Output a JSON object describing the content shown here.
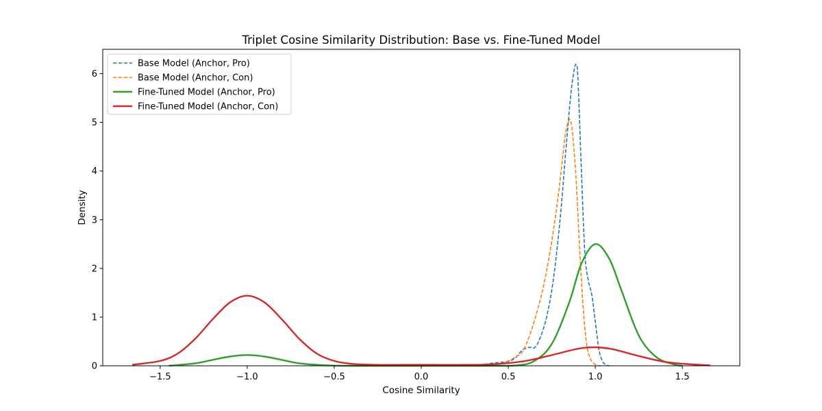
{
  "chart_data": {
    "type": "line",
    "title": "Triplet Cosine Similarity Distribution: Base vs. Fine-Tuned Model",
    "xlabel": "Cosine Similarity",
    "ylabel": "Density",
    "xlim": [
      -1.83,
      1.83
    ],
    "ylim": [
      0,
      6.5
    ],
    "xticks": [
      -1.5,
      -1.0,
      -0.5,
      0.0,
      0.5,
      1.0,
      1.5
    ],
    "xtick_labels": [
      "−1.5",
      "−1.0",
      "−0.5",
      "0.0",
      "0.5",
      "1.0",
      "1.5"
    ],
    "yticks": [
      0,
      1,
      2,
      3,
      4,
      5,
      6
    ],
    "ytick_labels": [
      "0",
      "1",
      "2",
      "3",
      "4",
      "5",
      "6"
    ],
    "grid": false,
    "legend_position": "top-left",
    "series": [
      {
        "name": "Base Model (Anchor, Pro)",
        "color": "#1f77b4",
        "dash": "dashed",
        "x": [
          0.3,
          0.35,
          0.4,
          0.45,
          0.5,
          0.54,
          0.58,
          0.62,
          0.65,
          0.68,
          0.72,
          0.76,
          0.8,
          0.83,
          0.86,
          0.88,
          0.89,
          0.9,
          0.92,
          0.94,
          0.96,
          0.98,
          1.0,
          1.02,
          1.04,
          1.06,
          1.08
        ],
        "values": [
          0.0,
          0.02,
          0.05,
          0.07,
          0.09,
          0.16,
          0.32,
          0.38,
          0.37,
          0.55,
          1.0,
          1.8,
          3.1,
          4.4,
          5.6,
          6.1,
          6.18,
          5.9,
          4.0,
          2.3,
          1.75,
          1.45,
          0.9,
          0.35,
          0.1,
          0.02,
          0.0
        ]
      },
      {
        "name": "Base Model (Anchor, Con)",
        "color": "#ff7f0e",
        "dash": "dashed",
        "x": [
          0.4,
          0.45,
          0.5,
          0.55,
          0.58,
          0.62,
          0.66,
          0.7,
          0.74,
          0.78,
          0.81,
          0.83,
          0.85,
          0.86,
          0.87,
          0.89,
          0.91,
          0.93,
          0.95,
          0.97,
          0.99,
          1.01,
          1.03
        ],
        "values": [
          0.0,
          0.04,
          0.1,
          0.2,
          0.28,
          0.6,
          1.05,
          1.6,
          2.35,
          3.3,
          4.2,
          4.8,
          5.05,
          5.0,
          4.75,
          3.8,
          2.4,
          1.2,
          0.45,
          0.15,
          0.05,
          0.01,
          0.0
        ]
      },
      {
        "name": "Fine-Tuned Model (Anchor, Pro)",
        "color": "#2ca02c",
        "dash": "solid",
        "x": [
          -1.45,
          -1.3,
          -1.2,
          -1.1,
          -1.0,
          -0.9,
          -0.8,
          -0.7,
          -0.55,
          -0.4,
          0.0,
          0.4,
          0.55,
          0.65,
          0.75,
          0.85,
          0.92,
          1.0,
          1.08,
          1.15,
          1.25,
          1.35,
          1.45,
          1.5
        ],
        "values": [
          0.0,
          0.05,
          0.12,
          0.19,
          0.22,
          0.19,
          0.12,
          0.05,
          0.01,
          0.0,
          0.0,
          0.0,
          0.01,
          0.1,
          0.45,
          1.3,
          2.1,
          2.5,
          2.2,
          1.55,
          0.62,
          0.18,
          0.03,
          0.0
        ]
      },
      {
        "name": "Fine-Tuned Model (Anchor, Con)",
        "color": "#d62728",
        "dash": "solid",
        "x": [
          -1.66,
          -1.5,
          -1.4,
          -1.3,
          -1.2,
          -1.1,
          -1.0,
          -0.9,
          -0.8,
          -0.7,
          -0.6,
          -0.5,
          -0.4,
          -0.25,
          0.0,
          0.3,
          0.45,
          0.6,
          0.75,
          0.9,
          1.0,
          1.1,
          1.25,
          1.4,
          1.55,
          1.66
        ],
        "values": [
          0.02,
          0.1,
          0.25,
          0.55,
          0.95,
          1.3,
          1.44,
          1.3,
          0.95,
          0.55,
          0.25,
          0.1,
          0.04,
          0.02,
          0.02,
          0.02,
          0.04,
          0.1,
          0.22,
          0.35,
          0.38,
          0.34,
          0.2,
          0.08,
          0.03,
          0.01
        ]
      }
    ]
  }
}
